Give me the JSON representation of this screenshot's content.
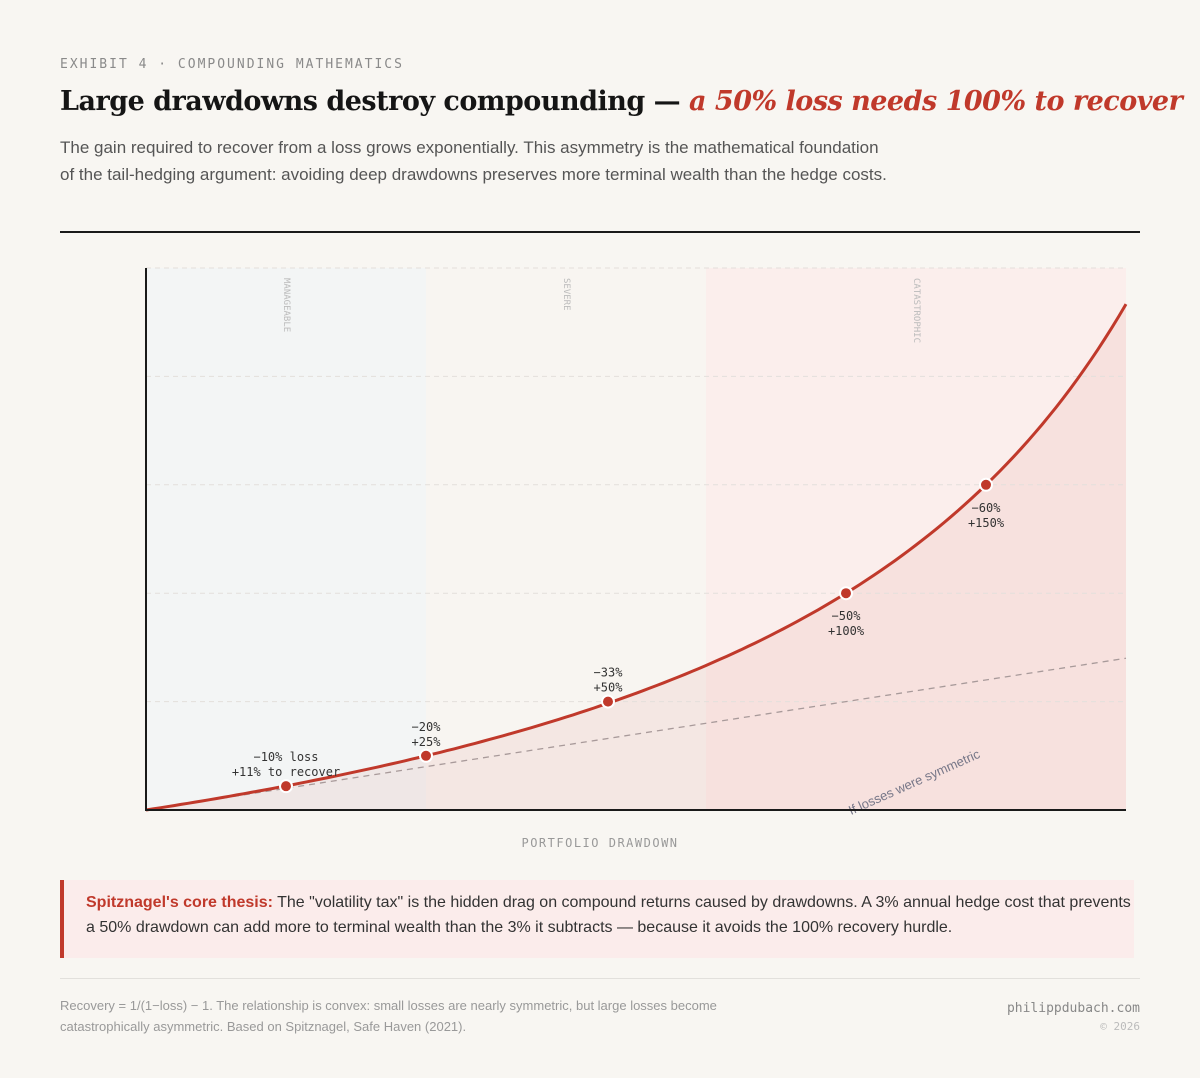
{
  "header": {
    "eyebrow": "EXHIBIT 4 · COMPOUNDING MATHEMATICS",
    "title_main": "Large drawdowns destroy compounding — ",
    "title_accent": "a 50% loss needs 100% to recover",
    "subtitle": "The gain required to recover from a loss grows exponentially. This asymmetry is the mathematical foundation of the tail-hedging argument: avoiding deep drawdowns preserves more terminal wealth than the hedge costs."
  },
  "chart_data": {
    "type": "line",
    "xlabel": "PORTFOLIO DRAWDOWN",
    "ylabel": "",
    "xlim": [
      0,
      70
    ],
    "ylim": [
      0,
      250
    ],
    "y_gridlines": [
      50,
      100,
      150,
      200,
      250
    ],
    "grid": true,
    "formula": "recovery = 1/(1-loss) - 1",
    "zones": [
      {
        "label": "MANAGEABLE",
        "from": 0,
        "to": 20,
        "color": "#f3f5f5"
      },
      {
        "label": "SEVERE",
        "from": 20,
        "to": 40,
        "color": "#f8f5f1"
      },
      {
        "label": "CATASTROPHIC",
        "from": 40,
        "to": 70,
        "color": "#fbeeec"
      }
    ],
    "series": [
      {
        "key": "recovery",
        "color": "#c0392b",
        "style": "solid"
      },
      {
        "key": "symmetric",
        "name": "If losses were symmetric",
        "color": "#a89a9a",
        "style": "dashed"
      }
    ],
    "points": [
      {
        "loss": 10,
        "gain": 11,
        "label1": "−10% loss",
        "label2": "+11% to recover",
        "pos": "above"
      },
      {
        "loss": 20,
        "gain": 25,
        "label1": "−20%",
        "label2": "+25%",
        "pos": "above"
      },
      {
        "loss": 33,
        "gain": 50,
        "label1": "−33%",
        "label2": "+50%",
        "pos": "above"
      },
      {
        "loss": 50,
        "gain": 100,
        "label1": "−50%",
        "label2": "+100%",
        "pos": "below"
      },
      {
        "loss": 60,
        "gain": 150,
        "label1": "−60%",
        "label2": "+150%",
        "pos": "below"
      }
    ]
  },
  "callout": {
    "lead": "Spitznagel's core thesis:",
    "text": " The \"volatility tax\" is the hidden drag on compound returns caused by drawdowns. A 3% annual hedge cost that prevents a 50% drawdown can add more to terminal wealth than the 3% it subtracts — because it avoids the 100% recovery hurdle."
  },
  "footer": {
    "note": "Recovery = 1/(1−loss) − 1. The relationship is convex: small losses are nearly symmetric, but large losses become catastrophically asymmetric. Based on Spitznagel, Safe Haven (2021).",
    "site": "philippdubach.com",
    "copyright": "© 2026"
  }
}
